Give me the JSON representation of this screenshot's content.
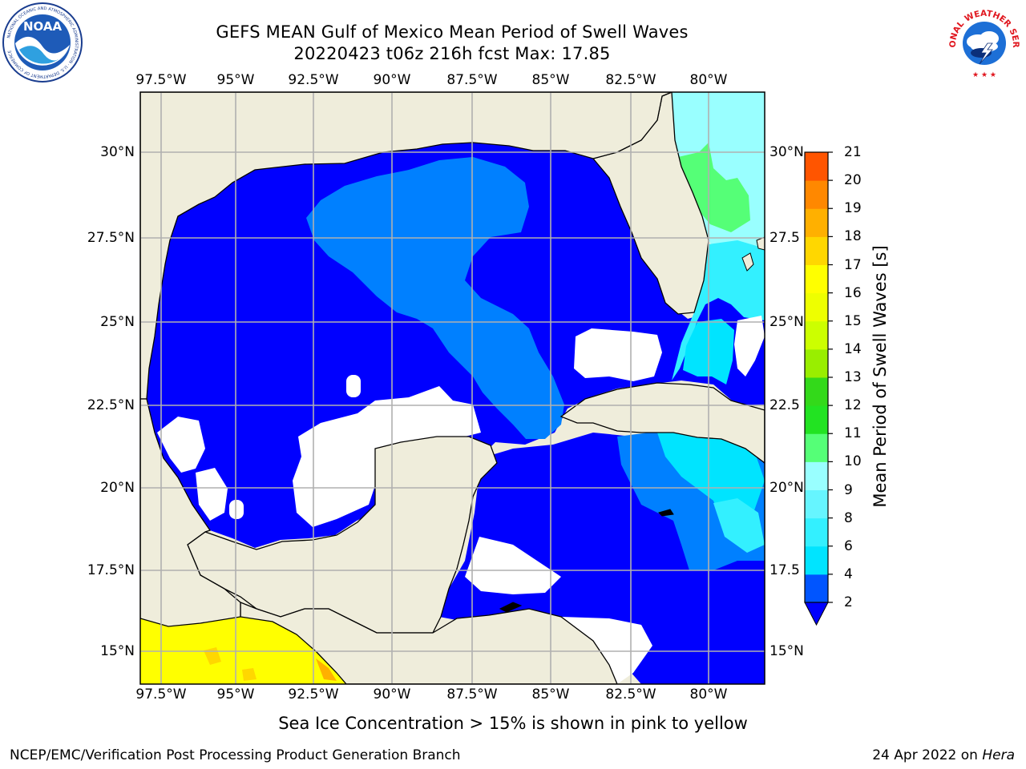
{
  "title": {
    "line1": "GEFS MEAN Gulf of Mexico Mean Period of Swell Waves",
    "line2": "20220423 t06z 216h fcst   Max: 17.85"
  },
  "map": {
    "longitude_ticks": [
      "97.5°W",
      "95°W",
      "92.5°W",
      "90°W",
      "87.5°W",
      "85°W",
      "82.5°W",
      "80°W"
    ],
    "latitude_ticks_left": [
      "30°N",
      "27.5°N",
      "25°N",
      "22.5°N",
      "20°N",
      "17.5°N",
      "15°N"
    ],
    "latitude_ticks_right": [
      "30°N",
      "27.5",
      "25°N",
      "22.5",
      "20°N",
      "17.5",
      "15°N"
    ],
    "lon_range": [
      -98,
      -78.2
    ],
    "lat_range": [
      14,
      31.7
    ],
    "land_color": "#efeddb",
    "grid": true
  },
  "colorbar": {
    "label": "Mean Period of Swell Waves [s]",
    "ticks": [
      "2",
      "4",
      "6",
      "8",
      "9",
      "10",
      "11",
      "12",
      "13",
      "14",
      "15",
      "16",
      "17",
      "18",
      "19",
      "20",
      "21"
    ],
    "colors": [
      "#0055ff",
      "#00e4ff",
      "#33f0ff",
      "#66f5ff",
      "#99ffff",
      "#55ff77",
      "#22e322",
      "#33d91a",
      "#99ee00",
      "#ccff00",
      "#eeff00",
      "#ffff00",
      "#ffd700",
      "#ffb000",
      "#ff8800",
      "#ff5500",
      "#ff2200",
      "#ff0000"
    ],
    "under_color": "#0000ff",
    "extend": "min"
  },
  "caption": "Sea Ice Concentration > 15% is shown in pink to yellow",
  "footer": {
    "left": "NCEP/EMC/Verification Post Processing Product Generation Branch",
    "right_date": "24 Apr 2022 on ",
    "right_host": "Hera"
  },
  "logos": {
    "noaa": "NOAA",
    "noaa_ring": "NATIONAL OCEANIC AND ATMOSPHERIC ADMINISTRATION · U.S. DEPARTMENT OF COMMERCE",
    "nws_ring": "NATIONAL WEATHER SERVICE"
  }
}
